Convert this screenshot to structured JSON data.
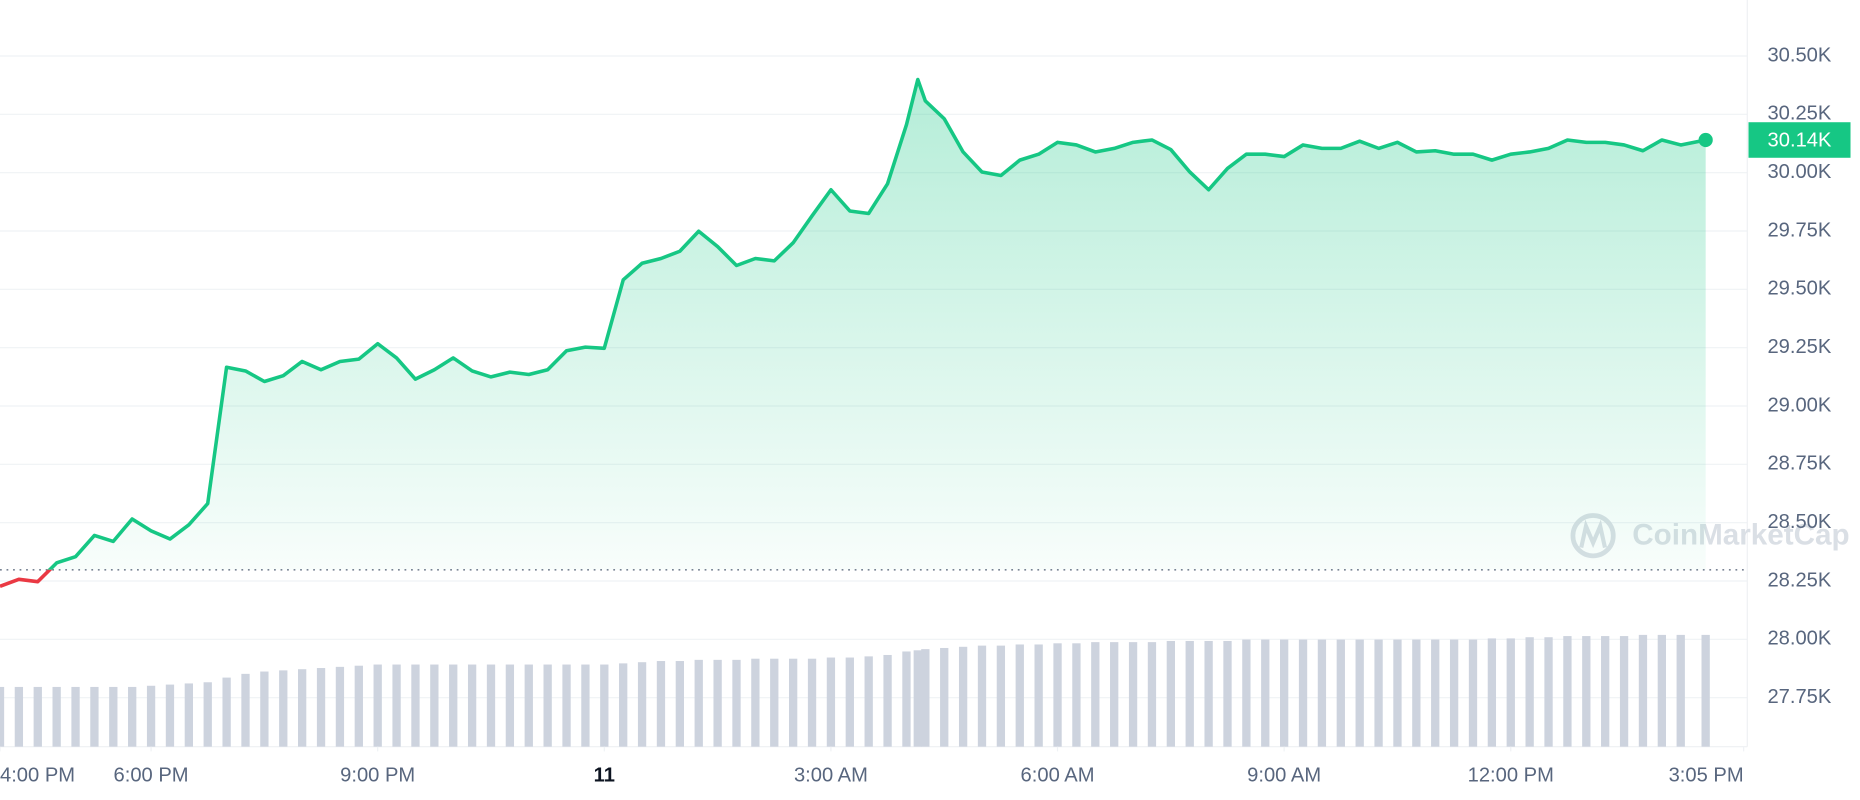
{
  "chart_data": {
    "type": "area",
    "x": [
      16,
      16.25,
      16.5,
      16.75,
      17,
      17.25,
      17.5,
      17.75,
      18,
      18.25,
      18.5,
      18.75,
      19,
      19.25,
      19.5,
      19.75,
      20,
      20.25,
      20.5,
      20.75,
      21,
      21.25,
      21.5,
      21.75,
      22,
      22.25,
      22.5,
      22.75,
      23,
      23.25,
      23.5,
      23.75,
      24,
      24.25,
      24.5,
      24.75,
      25,
      25.25,
      25.5,
      25.75,
      26,
      26.25,
      26.5,
      26.75,
      27,
      27.25,
      27.5,
      27.75,
      28,
      28.15,
      28.25,
      28.5,
      28.75,
      29,
      29.25,
      29.5,
      29.75,
      30,
      30.25,
      30.5,
      30.75,
      31,
      31.25,
      31.5,
      31.75,
      32,
      32.25,
      32.5,
      32.75,
      33,
      33.25,
      33.5,
      33.75,
      34,
      34.25,
      34.5,
      34.75,
      35,
      35.25,
      35.5,
      35.75,
      36,
      36.25,
      36.5,
      36.75,
      37,
      37.25,
      37.5,
      37.75,
      38,
      38.25,
      38.58
    ],
    "values": [
      28227,
      28257,
      28247,
      28328,
      28354,
      28445,
      28420,
      28516,
      28465,
      28430,
      28491,
      28582,
      29166,
      29150,
      29105,
      29130,
      29191,
      29155,
      29191,
      29201,
      29267,
      29206,
      29115,
      29155,
      29206,
      29150,
      29125,
      29145,
      29135,
      29155,
      29237,
      29252,
      29247,
      29541,
      29612,
      29632,
      29663,
      29749,
      29683,
      29602,
      29632,
      29622,
      29699,
      29815,
      29927,
      29836,
      29825,
      29952,
      30206,
      30399,
      30307,
      30231,
      30089,
      30003,
      29988,
      30054,
      30079,
      30130,
      30119,
      30089,
      30104,
      30130,
      30140,
      30099,
      30003,
      29927,
      30018,
      30079,
      30079,
      30069,
      30119,
      30104,
      30104,
      30135,
      30104,
      30130,
      30089,
      30094,
      30079,
      30079,
      30054,
      30079,
      30089,
      30104,
      30140,
      30130,
      30130,
      30119,
      30094,
      30140,
      30119,
      30140
    ],
    "color": "#16c784",
    "down_color": "#ea3943",
    "reference_line": 28298,
    "bars": {
      "color": "#cdd3de",
      "values": [
        27796,
        27796,
        27796,
        27796,
        27796,
        27796,
        27796,
        27796,
        27801,
        27806,
        27811,
        27816,
        27836,
        27852,
        27862,
        27867,
        27872,
        27877,
        27882,
        27887,
        27892,
        27892,
        27892,
        27892,
        27892,
        27892,
        27892,
        27892,
        27892,
        27892,
        27892,
        27892,
        27892,
        27897,
        27902,
        27907,
        27907,
        27912,
        27912,
        27912,
        27917,
        27917,
        27917,
        27917,
        27922,
        27922,
        27927,
        27933,
        27948,
        27953,
        27958,
        27963,
        27968,
        27973,
        27973,
        27978,
        27978,
        27983,
        27983,
        27988,
        27988,
        27988,
        27988,
        27993,
        27993,
        27993,
        27993,
        27999,
        27999,
        27999,
        27999,
        27999,
        27999,
        27999,
        27999,
        27999,
        27999,
        27999,
        27999,
        27999,
        28004,
        28004,
        28009,
        28009,
        28014,
        28014,
        28014,
        28014,
        28019,
        28019,
        28019,
        28019
      ]
    },
    "last_value_label": "30.14K",
    "xlim": [
      16,
      39.1
    ],
    "xticks": [
      {
        "value": 16,
        "label": "4:00 PM"
      },
      {
        "value": 18,
        "label": "6:00 PM"
      },
      {
        "value": 21,
        "label": "9:00 PM"
      },
      {
        "value": 24,
        "label": "11",
        "bold": true
      },
      {
        "value": 27,
        "label": "3:00 AM"
      },
      {
        "value": 30,
        "label": "6:00 AM"
      },
      {
        "value": 33,
        "label": "9:00 AM"
      },
      {
        "value": 36,
        "label": "12:00 PM"
      },
      {
        "value": 39.083,
        "label": "3:05 PM"
      }
    ],
    "ylim": [
      27540,
      30740
    ],
    "yticks": [
      {
        "value": 27750,
        "label": "27.75K"
      },
      {
        "value": 28000,
        "label": "28.00K"
      },
      {
        "value": 28250,
        "label": "28.25K"
      },
      {
        "value": 28500,
        "label": "28.50K"
      },
      {
        "value": 28750,
        "label": "28.75K"
      },
      {
        "value": 29000,
        "label": "29.00K"
      },
      {
        "value": 29250,
        "label": "29.25K"
      },
      {
        "value": 29500,
        "label": "29.50K"
      },
      {
        "value": 29750,
        "label": "29.75K"
      },
      {
        "value": 30000,
        "label": "30.00K"
      },
      {
        "value": 30250,
        "label": "30.25K"
      },
      {
        "value": 30500,
        "label": "30.50K"
      }
    ],
    "grid": true,
    "watermark": "CoinMarketCap"
  }
}
